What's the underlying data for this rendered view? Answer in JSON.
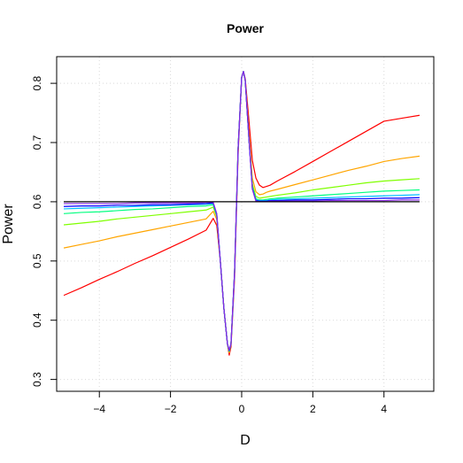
{
  "chart_data": {
    "type": "line",
    "title": "Power",
    "xlabel": "D",
    "ylabel": "Power",
    "xlim": [
      -5.2,
      5.4
    ],
    "ylim": [
      0.28,
      0.845
    ],
    "xticks": [
      -4,
      -2,
      0,
      2,
      4
    ],
    "xtick_labels": [
      "−4",
      "−2",
      "0",
      "2",
      "4"
    ],
    "yticks": [
      0.3,
      0.4,
      0.5,
      0.6,
      0.7,
      0.8
    ],
    "ytick_labels": [
      "0.3",
      "0.4",
      "0.5",
      "0.6",
      "0.7",
      "0.8"
    ],
    "grid": true,
    "legend": "none",
    "reference_line": {
      "y": 0.6,
      "color": "#000000"
    },
    "x": [
      -5,
      -4.5,
      -4,
      -3.5,
      -3,
      -2.5,
      -2,
      -1.5,
      -1,
      -0.8,
      -0.7,
      -0.6,
      -0.5,
      -0.4,
      -0.35,
      -0.3,
      -0.2,
      -0.1,
      0,
      0.05,
      0.1,
      0.2,
      0.3,
      0.4,
      0.5,
      0.6,
      0.7,
      0.8,
      1,
      1.5,
      2,
      2.5,
      3,
      3.5,
      4,
      4.5,
      5
    ],
    "series": [
      {
        "color": "#ff0000",
        "values": [
          0.442,
          0.455,
          0.469,
          0.482,
          0.496,
          0.509,
          0.523,
          0.537,
          0.552,
          0.572,
          0.56,
          0.5,
          0.42,
          0.36,
          0.341,
          0.355,
          0.47,
          0.68,
          0.81,
          0.82,
          0.808,
          0.74,
          0.67,
          0.64,
          0.628,
          0.624,
          0.626,
          0.628,
          0.635,
          0.651,
          0.668,
          0.685,
          0.702,
          0.719,
          0.736,
          0.741,
          0.746
        ]
      },
      {
        "color": "#ffa500",
        "values": [
          0.522,
          0.528,
          0.534,
          0.541,
          0.547,
          0.553,
          0.559,
          0.565,
          0.571,
          0.584,
          0.57,
          0.5,
          0.42,
          0.36,
          0.345,
          0.36,
          0.48,
          0.69,
          0.81,
          0.82,
          0.806,
          0.72,
          0.64,
          0.617,
          0.612,
          0.613,
          0.616,
          0.618,
          0.621,
          0.629,
          0.637,
          0.645,
          0.653,
          0.66,
          0.668,
          0.673,
          0.677
        ]
      },
      {
        "color": "#7fff00",
        "values": [
          0.561,
          0.564,
          0.567,
          0.571,
          0.574,
          0.577,
          0.58,
          0.583,
          0.586,
          0.591,
          0.575,
          0.5,
          0.42,
          0.36,
          0.347,
          0.36,
          0.48,
          0.69,
          0.81,
          0.82,
          0.805,
          0.71,
          0.63,
          0.609,
          0.606,
          0.607,
          0.608,
          0.609,
          0.611,
          0.615,
          0.62,
          0.624,
          0.628,
          0.632,
          0.635,
          0.637,
          0.639
        ]
      },
      {
        "color": "#00ff7f",
        "values": [
          0.58,
          0.582,
          0.583,
          0.585,
          0.587,
          0.588,
          0.59,
          0.592,
          0.593,
          0.595,
          0.577,
          0.5,
          0.42,
          0.36,
          0.348,
          0.36,
          0.48,
          0.69,
          0.81,
          0.82,
          0.805,
          0.71,
          0.625,
          0.605,
          0.603,
          0.603,
          0.604,
          0.605,
          0.606,
          0.608,
          0.61,
          0.612,
          0.614,
          0.616,
          0.618,
          0.619,
          0.62
        ]
      },
      {
        "color": "#00bfff",
        "values": [
          0.588,
          0.589,
          0.59,
          0.591,
          0.592,
          0.593,
          0.594,
          0.595,
          0.596,
          0.597,
          0.578,
          0.5,
          0.42,
          0.36,
          0.348,
          0.36,
          0.48,
          0.69,
          0.81,
          0.82,
          0.805,
          0.71,
          0.623,
          0.603,
          0.602,
          0.602,
          0.602,
          0.603,
          0.604,
          0.605,
          0.606,
          0.607,
          0.608,
          0.609,
          0.61,
          0.611,
          0.612
        ]
      },
      {
        "color": "#0000ff",
        "values": [
          0.592,
          0.593,
          0.593,
          0.594,
          0.594,
          0.595,
          0.595,
          0.596,
          0.597,
          0.598,
          0.579,
          0.5,
          0.42,
          0.36,
          0.349,
          0.36,
          0.48,
          0.69,
          0.81,
          0.82,
          0.805,
          0.71,
          0.622,
          0.602,
          0.601,
          0.601,
          0.601,
          0.602,
          0.602,
          0.603,
          0.603,
          0.604,
          0.605,
          0.605,
          0.606,
          0.606,
          0.607
        ]
      },
      {
        "color": "#8a2be2",
        "values": [
          0.597,
          0.597,
          0.597,
          0.597,
          0.598,
          0.598,
          0.598,
          0.598,
          0.599,
          0.599,
          0.58,
          0.5,
          0.42,
          0.36,
          0.35,
          0.36,
          0.48,
          0.69,
          0.81,
          0.82,
          0.805,
          0.71,
          0.621,
          0.601,
          0.6,
          0.6,
          0.6,
          0.601,
          0.601,
          0.601,
          0.601,
          0.602,
          0.602,
          0.602,
          0.602,
          0.603,
          0.603
        ]
      }
    ]
  }
}
